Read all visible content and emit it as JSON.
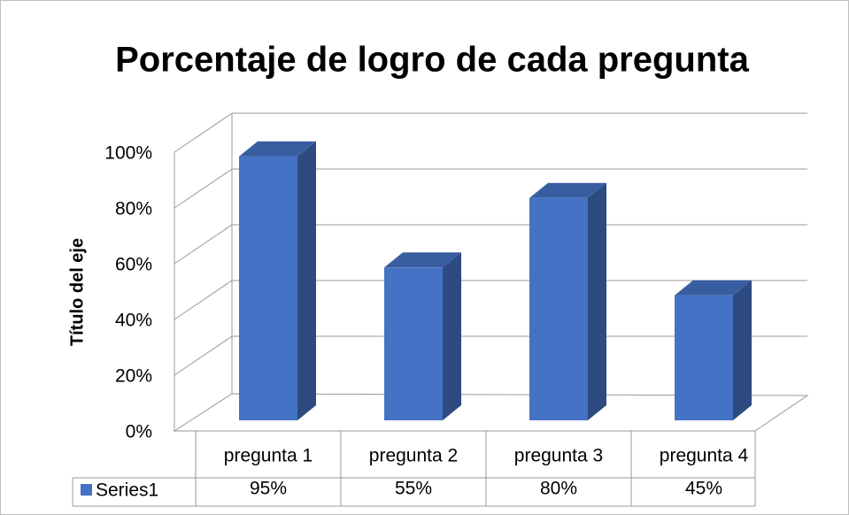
{
  "chart_data": {
    "type": "bar",
    "title": "Porcentaje de logro de cada pregunta",
    "y_axis_label": "Título del eje",
    "categories": [
      "pregunta 1",
      "pregunta 2",
      "pregunta 3",
      "pregunta 4"
    ],
    "series": [
      {
        "name": "Series1",
        "color": "#4472c4",
        "values": [
          95,
          55,
          80,
          45
        ],
        "value_labels": [
          "95%",
          "55%",
          "80%",
          "45%"
        ]
      }
    ],
    "ylim": [
      0,
      100
    ],
    "yticks": [
      {
        "value": 0,
        "label": "0%"
      },
      {
        "value": 20,
        "label": "20%"
      },
      {
        "value": 40,
        "label": "40%"
      },
      {
        "value": 60,
        "label": "60%"
      },
      {
        "value": 80,
        "label": "80%"
      },
      {
        "value": 100,
        "label": "100%"
      }
    ],
    "grid": true
  }
}
